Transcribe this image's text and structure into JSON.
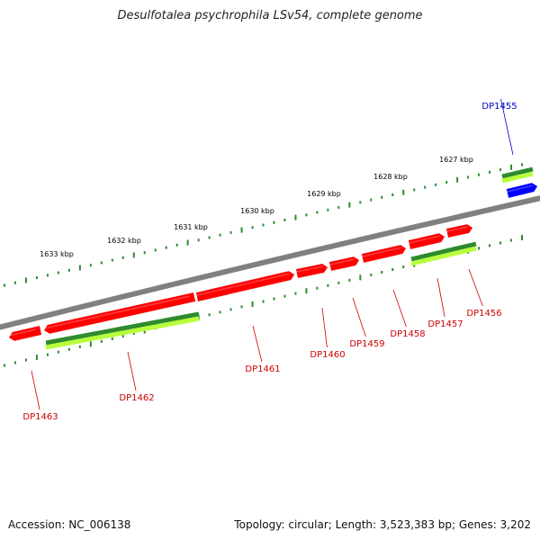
{
  "title": "Desulfotalea psychrophila LSv54, complete genome",
  "footer": {
    "accession": "Accession: NC_006138",
    "summary": "Topology: circular; Length: 3,523,383 bp; Genes: 3,202"
  },
  "colors": {
    "backbone": "#808080",
    "gene_red": "#ff0000",
    "gene_blue": "#0000ff",
    "tick": "#2d8a2d",
    "feature_dark": "#2e8b2e",
    "feature_light": "#b8ff3c",
    "label_red": "#cc0000",
    "label_blue": "#0000cc"
  },
  "kbp_labels": [
    "1627 kbp",
    "1628 kbp",
    "1629 kbp",
    "1630 kbp",
    "1631 kbp",
    "1632 kbp",
    "1633 kbp"
  ],
  "genes": [
    {
      "name": "DP1455",
      "color": "blue"
    },
    {
      "name": "DP1456",
      "color": "red"
    },
    {
      "name": "DP1457",
      "color": "red"
    },
    {
      "name": "DP1458",
      "color": "red"
    },
    {
      "name": "DP1459",
      "color": "red"
    },
    {
      "name": "DP1460",
      "color": "red"
    },
    {
      "name": "DP1461",
      "color": "red"
    },
    {
      "name": "DP1462",
      "color": "red"
    },
    {
      "name": "DP1463",
      "color": "red"
    }
  ]
}
